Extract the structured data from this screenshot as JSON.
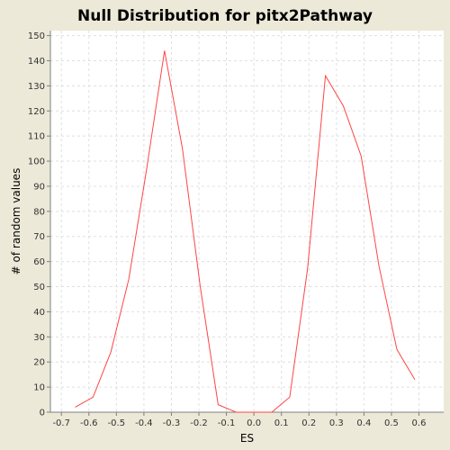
{
  "colors": {
    "background": "#ece9d8",
    "plot_background": "#ffffff",
    "grid": "#e0e0e0",
    "series": "#ff4444",
    "axis": "#7f7f7f"
  },
  "chart_data": {
    "type": "line",
    "title": "Null Distribution for pitx2Pathway",
    "xlabel": "ES",
    "ylabel": "# of random values",
    "xlim": [
      -0.74,
      0.69
    ],
    "ylim": [
      0,
      152
    ],
    "grid": true,
    "x_ticks": [
      -0.7,
      -0.6,
      -0.5,
      -0.4,
      -0.3,
      -0.2,
      -0.1,
      0.0,
      0.1,
      0.2,
      0.3,
      0.4,
      0.5,
      0.6
    ],
    "x_tick_labels": [
      "-0.7",
      "-0.6",
      "-0.5",
      "-0.4",
      "-0.3",
      "-0.2",
      "-0.1",
      "0.0",
      "0.1",
      "0.2",
      "0.3",
      "0.4",
      "0.5",
      "0.6"
    ],
    "y_ticks": [
      0,
      10,
      20,
      30,
      40,
      50,
      60,
      70,
      80,
      90,
      100,
      110,
      120,
      130,
      140,
      150
    ],
    "y_tick_labels": [
      "0",
      "10",
      "20",
      "30",
      "40",
      "50",
      "60",
      "70",
      "80",
      "90",
      "100",
      "110",
      "120",
      "130",
      "140",
      "150"
    ],
    "series": [
      {
        "x": [
          -0.65,
          -0.585,
          -0.52,
          -0.455,
          -0.39,
          -0.325,
          -0.26,
          -0.195,
          -0.13,
          -0.065,
          0.0,
          0.065,
          0.13,
          0.195,
          0.26,
          0.325,
          0.39,
          0.455,
          0.52,
          0.585
        ],
        "y": [
          2,
          6,
          24,
          53,
          97,
          144,
          105,
          50,
          3,
          0,
          0,
          0,
          6,
          57,
          134,
          122,
          102,
          58,
          25,
          13
        ]
      }
    ]
  }
}
